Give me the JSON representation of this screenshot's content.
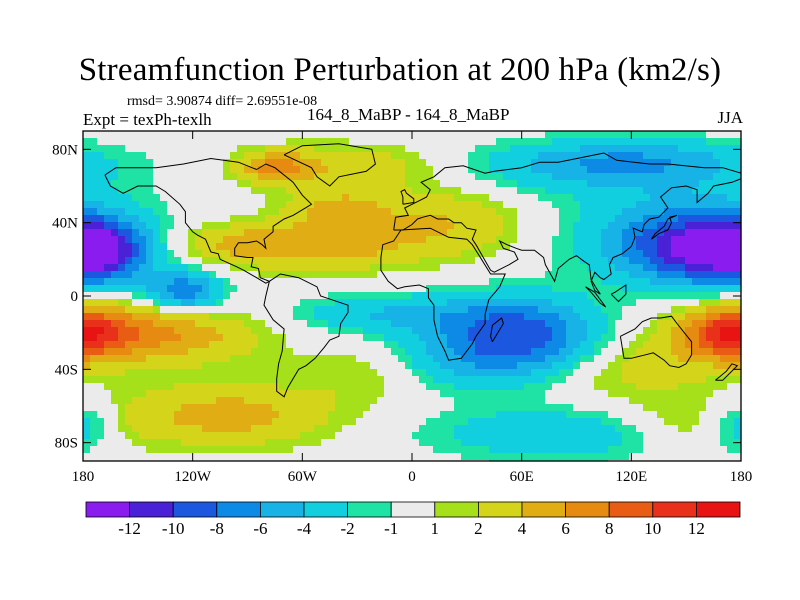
{
  "chart_data": {
    "type": "heatmap",
    "title": "Streamfunction Perturbation at 200 hPa (km2/s)",
    "stats_line": "rmsd= 3.90874 diff= 2.69551e-08",
    "left_label": "Expt = texPh-texlh",
    "center_label": "164_8_MaBP - 164_8_MaBP",
    "right_label": "JJA",
    "x_ticks": [
      "180",
      "120W",
      "60W",
      "0",
      "60E",
      "120E",
      "180"
    ],
    "y_ticks": [
      "80N",
      "40N",
      "0",
      "40S",
      "80S"
    ],
    "colorbar": {
      "tick_labels": [
        "-12",
        "-10",
        "-8",
        "-6",
        "-4",
        "-2",
        "-1",
        "1",
        "2",
        "4",
        "6",
        "8",
        "10",
        "12"
      ],
      "colors": [
        "#8a1cf0",
        "#4a21d6",
        "#1c57e0",
        "#0d8ae6",
        "#18b3e6",
        "#12cfe0",
        "#1ee3a4",
        "#ebebeb",
        "#a6e01a",
        "#d4d41a",
        "#e0ae14",
        "#e68a12",
        "#e85c14",
        "#e8301a",
        "#e81414"
      ]
    },
    "blobs": [
      {
        "lon": -170,
        "lat": 25,
        "sx": 18,
        "sy": 12,
        "v": -8
      },
      {
        "lon": -125,
        "lat": 2,
        "sx": 15,
        "sy": 8,
        "v": -8
      },
      {
        "lon": -35,
        "lat": 70,
        "sx": 40,
        "sy": 9,
        "v": 4
      },
      {
        "lon": -75,
        "lat": 70,
        "sx": 14,
        "sy": 6,
        "v": 5
      },
      {
        "lon": -95,
        "lat": 28,
        "sx": 25,
        "sy": 8,
        "v": 4
      },
      {
        "lon": -45,
        "lat": 28,
        "sx": 30,
        "sy": 10,
        "v": 5
      },
      {
        "lon": -40,
        "lat": 48,
        "sx": 20,
        "sy": 7,
        "v": 4
      },
      {
        "lon": 20,
        "lat": 40,
        "sx": 30,
        "sy": 14,
        "v": 4
      },
      {
        "lon": 95,
        "lat": 68,
        "sx": 70,
        "sy": 10,
        "v": -3
      },
      {
        "lon": 120,
        "lat": 75,
        "sx": 45,
        "sy": 8,
        "v": -4
      },
      {
        "lon": 160,
        "lat": 25,
        "sx": 30,
        "sy": 14,
        "v": -10
      },
      {
        "lon": 145,
        "lat": 35,
        "sx": 45,
        "sy": 18,
        "v": -4
      },
      {
        "lon": -150,
        "lat": -20,
        "sx": 45,
        "sy": 12,
        "v": 7
      },
      {
        "lon": -25,
        "lat": -40,
        "sx": 25,
        "sy": 12,
        "v": 3
      },
      {
        "lon": -10,
        "lat": -10,
        "sx": 45,
        "sy": 8,
        "v": -4
      },
      {
        "lon": 60,
        "lat": -20,
        "sx": 30,
        "sy": 14,
        "v": -8
      },
      {
        "lon": 30,
        "lat": -35,
        "sx": 45,
        "sy": 12,
        "v": -4
      },
      {
        "lon": 120,
        "lat": -40,
        "sx": 35,
        "sy": 12,
        "v": 3
      },
      {
        "lon": 175,
        "lat": -20,
        "sx": 18,
        "sy": 10,
        "v": 8
      },
      {
        "lon": -100,
        "lat": -65,
        "sx": 40,
        "sy": 12,
        "v": 5
      },
      {
        "lon": 80,
        "lat": -75,
        "sx": 50,
        "sy": 10,
        "v": -4
      },
      {
        "lon": 160,
        "lat": -70,
        "sx": 35,
        "sy": 10,
        "v": 3
      },
      {
        "lon": -180,
        "lat": -70,
        "sx": 14,
        "sy": 10,
        "v": -5
      }
    ]
  }
}
